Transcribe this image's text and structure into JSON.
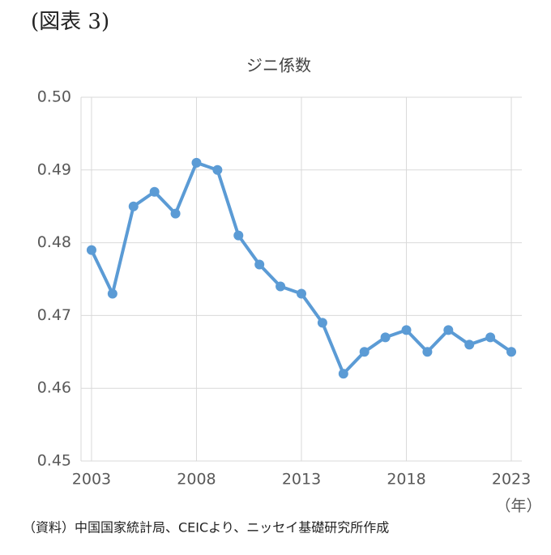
{
  "chart_data": {
    "type": "line",
    "figure_label": "(図表 3)",
    "title": "ジニ係数",
    "x_label": "（年）",
    "source": "（資料）中国国家統計局、CEICより、ニッセイ基礎研究所作成",
    "x": [
      2003,
      2004,
      2005,
      2006,
      2007,
      2008,
      2009,
      2010,
      2011,
      2012,
      2013,
      2014,
      2015,
      2016,
      2017,
      2018,
      2019,
      2020,
      2021,
      2022,
      2023
    ],
    "series": [
      {
        "name": "ジニ係数",
        "color": "#5b9bd5",
        "values": [
          0.479,
          0.473,
          0.485,
          0.487,
          0.484,
          0.491,
          0.49,
          0.481,
          0.477,
          0.474,
          0.473,
          0.469,
          0.462,
          0.465,
          0.467,
          0.468,
          0.465,
          0.468,
          0.466,
          0.467,
          0.465
        ]
      }
    ],
    "xlim": [
      2002.5,
      2023.5
    ],
    "xticks": [
      2003,
      2008,
      2013,
      2018,
      2023
    ],
    "ylim": [
      0.45,
      0.5
    ],
    "yticks": [
      0.45,
      0.46,
      0.47,
      0.48,
      0.49,
      {
        "value": 0.5,
        "label": "0.50"
      }
    ],
    "grid": true
  }
}
